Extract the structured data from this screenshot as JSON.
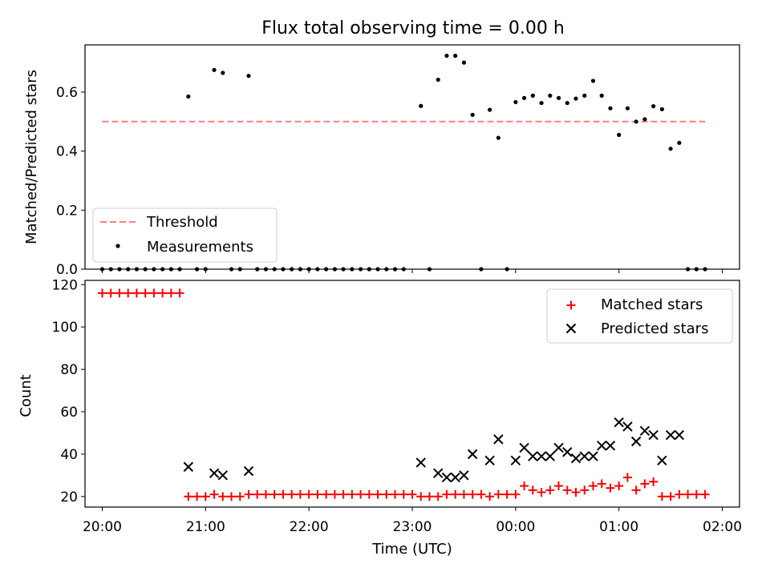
{
  "title": "Flux total observing time = 0.00 h",
  "chart_data": [
    {
      "type": "scatter",
      "ylabel": "Matched/Predicted stars",
      "xlim": [
        "19:50",
        "02:10"
      ],
      "ylim": [
        0,
        0.76
      ],
      "yticks": [
        0.0,
        0.2,
        0.4,
        0.6
      ],
      "ytick_labels": [
        "0.0",
        "0.2",
        "0.4",
        "0.6"
      ],
      "threshold": {
        "label": "Threshold",
        "value": 0.5,
        "x_range": [
          "20:00",
          "01:50"
        ],
        "color": "#ff7f7f"
      },
      "series": [
        {
          "name": "Measurements",
          "color": "#000000",
          "points": [
            [
              "20:00",
              0
            ],
            [
              "20:05",
              0
            ],
            [
              "20:10",
              0
            ],
            [
              "20:15",
              0
            ],
            [
              "20:20",
              0
            ],
            [
              "20:25",
              0
            ],
            [
              "20:30",
              0
            ],
            [
              "20:35",
              0
            ],
            [
              "20:40",
              0
            ],
            [
              "20:45",
              0
            ],
            [
              "20:50",
              0.585
            ],
            [
              "20:55",
              0
            ],
            [
              "21:00",
              0
            ],
            [
              "21:05",
              0.675
            ],
            [
              "21:10",
              0.665
            ],
            [
              "21:15",
              0
            ],
            [
              "21:20",
              0
            ],
            [
              "21:25",
              0.655
            ],
            [
              "21:30",
              0
            ],
            [
              "21:35",
              0
            ],
            [
              "21:40",
              0
            ],
            [
              "21:45",
              0
            ],
            [
              "21:50",
              0
            ],
            [
              "21:55",
              0
            ],
            [
              "22:00",
              0
            ],
            [
              "22:05",
              0
            ],
            [
              "22:10",
              0
            ],
            [
              "22:15",
              0
            ],
            [
              "22:20",
              0
            ],
            [
              "22:25",
              0
            ],
            [
              "22:30",
              0
            ],
            [
              "22:35",
              0
            ],
            [
              "22:40",
              0
            ],
            [
              "22:45",
              0
            ],
            [
              "22:50",
              0
            ],
            [
              "22:55",
              0
            ],
            [
              "23:05",
              0.553
            ],
            [
              "23:10",
              0
            ],
            [
              "23:15",
              0.642
            ],
            [
              "23:20",
              0.723
            ],
            [
              "23:25",
              0.723
            ],
            [
              "23:30",
              0.7
            ],
            [
              "23:35",
              0.523
            ],
            [
              "23:40",
              0
            ],
            [
              "23:45",
              0.54
            ],
            [
              "23:50",
              0.445
            ],
            [
              "23:55",
              0
            ],
            [
              "00:00",
              0.566
            ],
            [
              "00:05",
              0.58
            ],
            [
              "00:10",
              0.588
            ],
            [
              "00:15",
              0.563
            ],
            [
              "00:20",
              0.588
            ],
            [
              "00:25",
              0.58
            ],
            [
              "00:30",
              0.563
            ],
            [
              "00:35",
              0.578
            ],
            [
              "00:40",
              0.588
            ],
            [
              "00:45",
              0.638
            ],
            [
              "00:50",
              0.588
            ],
            [
              "00:55",
              0.545
            ],
            [
              "01:00",
              0.455
            ],
            [
              "01:05",
              0.545
            ],
            [
              "01:10",
              0.5
            ],
            [
              "01:15",
              0.508
            ],
            [
              "01:20",
              0.552
            ],
            [
              "01:25",
              0.542
            ],
            [
              "01:30",
              0.408
            ],
            [
              "01:35",
              0.428
            ],
            [
              "01:40",
              0
            ],
            [
              "01:45",
              0
            ],
            [
              "01:50",
              0
            ]
          ]
        }
      ],
      "legend": {
        "position": "lower-left"
      }
    },
    {
      "type": "scatter",
      "xlabel": "Time (UTC)",
      "ylabel": "Count",
      "xlim": [
        "19:50",
        "02:10"
      ],
      "ylim": [
        15,
        122
      ],
      "yticks": [
        20,
        40,
        60,
        80,
        100,
        120
      ],
      "xticks": [
        "20:00",
        "21:00",
        "22:00",
        "23:00",
        "00:00",
        "01:00",
        "02:00"
      ],
      "series": [
        {
          "name": "Matched stars",
          "marker": "+",
          "color": "#ff0000",
          "points": [
            [
              "20:00",
              116
            ],
            [
              "20:05",
              116
            ],
            [
              "20:10",
              116
            ],
            [
              "20:15",
              116
            ],
            [
              "20:20",
              116
            ],
            [
              "20:25",
              116
            ],
            [
              "20:30",
              116
            ],
            [
              "20:35",
              116
            ],
            [
              "20:40",
              116
            ],
            [
              "20:45",
              116
            ],
            [
              "20:50",
              20
            ],
            [
              "20:55",
              20
            ],
            [
              "21:00",
              20
            ],
            [
              "21:05",
              21
            ],
            [
              "21:10",
              20
            ],
            [
              "21:15",
              20
            ],
            [
              "21:20",
              20
            ],
            [
              "21:25",
              21
            ],
            [
              "21:30",
              21
            ],
            [
              "21:35",
              21
            ],
            [
              "21:40",
              21
            ],
            [
              "21:45",
              21
            ],
            [
              "21:50",
              21
            ],
            [
              "21:55",
              21
            ],
            [
              "22:00",
              21
            ],
            [
              "22:05",
              21
            ],
            [
              "22:10",
              21
            ],
            [
              "22:15",
              21
            ],
            [
              "22:20",
              21
            ],
            [
              "22:25",
              21
            ],
            [
              "22:30",
              21
            ],
            [
              "22:35",
              21
            ],
            [
              "22:40",
              21
            ],
            [
              "22:45",
              21
            ],
            [
              "22:50",
              21
            ],
            [
              "22:55",
              21
            ],
            [
              "23:00",
              21
            ],
            [
              "23:05",
              20
            ],
            [
              "23:10",
              20
            ],
            [
              "23:15",
              20
            ],
            [
              "23:20",
              21
            ],
            [
              "23:25",
              21
            ],
            [
              "23:30",
              21
            ],
            [
              "23:35",
              21
            ],
            [
              "23:40",
              21
            ],
            [
              "23:45",
              20
            ],
            [
              "23:50",
              21
            ],
            [
              "23:55",
              21
            ],
            [
              "00:00",
              21
            ],
            [
              "00:05",
              25
            ],
            [
              "00:10",
              23
            ],
            [
              "00:15",
              22
            ],
            [
              "00:20",
              23
            ],
            [
              "00:25",
              25
            ],
            [
              "00:30",
              23
            ],
            [
              "00:35",
              22
            ],
            [
              "00:40",
              23
            ],
            [
              "00:45",
              25
            ],
            [
              "00:50",
              26
            ],
            [
              "00:55",
              24
            ],
            [
              "01:00",
              25
            ],
            [
              "01:05",
              29
            ],
            [
              "01:10",
              23
            ],
            [
              "01:15",
              26
            ],
            [
              "01:20",
              27
            ],
            [
              "01:25",
              20
            ],
            [
              "01:30",
              20
            ],
            [
              "01:35",
              21
            ],
            [
              "01:40",
              21
            ],
            [
              "01:45",
              21
            ],
            [
              "01:50",
              21
            ]
          ]
        },
        {
          "name": "Predicted stars",
          "marker": "x",
          "color": "#000000",
          "points": [
            [
              "20:50",
              34
            ],
            [
              "21:05",
              31
            ],
            [
              "21:10",
              30
            ],
            [
              "21:25",
              32
            ],
            [
              "23:05",
              36
            ],
            [
              "23:15",
              31
            ],
            [
              "23:20",
              29
            ],
            [
              "23:25",
              29
            ],
            [
              "23:30",
              30
            ],
            [
              "23:35",
              40
            ],
            [
              "23:45",
              37
            ],
            [
              "23:50",
              47
            ],
            [
              "00:00",
              37
            ],
            [
              "00:05",
              43
            ],
            [
              "00:10",
              39
            ],
            [
              "00:15",
              39
            ],
            [
              "00:20",
              39
            ],
            [
              "00:25",
              43
            ],
            [
              "00:30",
              41
            ],
            [
              "00:35",
              38
            ],
            [
              "00:40",
              39
            ],
            [
              "00:45",
              39
            ],
            [
              "00:50",
              44
            ],
            [
              "00:55",
              44
            ],
            [
              "01:00",
              55
            ],
            [
              "01:05",
              53
            ],
            [
              "01:10",
              46
            ],
            [
              "01:15",
              51
            ],
            [
              "01:20",
              49
            ],
            [
              "01:25",
              37
            ],
            [
              "01:30",
              49
            ],
            [
              "01:35",
              49
            ]
          ]
        }
      ],
      "legend": {
        "position": "upper-right"
      }
    }
  ]
}
